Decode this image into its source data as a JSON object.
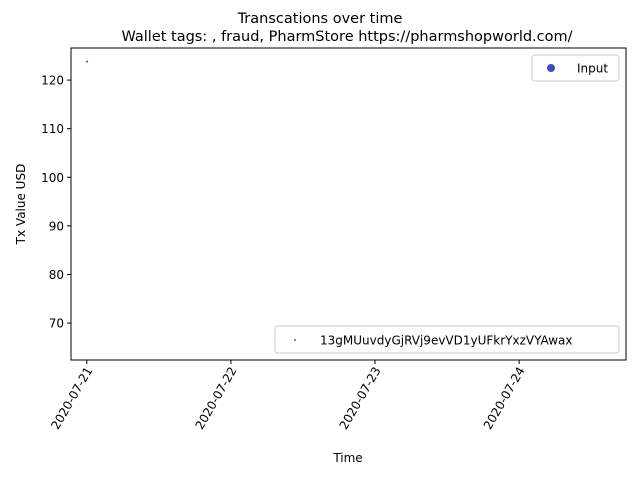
{
  "chart_data": {
    "type": "scatter",
    "suptitle": "Transcations over time",
    "title": "Wallet tags: , fraud, PharmStore https://pharmshopworld.com/",
    "xlabel": "Time",
    "ylabel": "Tx Value USD",
    "x_ticks": [
      "2020-07-21",
      "2020-07-22",
      "2020-07-23",
      "2020-07-24"
    ],
    "xlim": [
      "2020-07-20T21:22:00",
      "2020-07-24T17:48:00"
    ],
    "y_ticks": [
      70,
      80,
      90,
      100,
      110,
      120
    ],
    "ylim": [
      62.4,
      126.6
    ],
    "grid": false,
    "series": [
      {
        "name": "13gMUuvdyGjRVj9evVD1yUFkrYxzVYAwax",
        "color": "#1f77b4",
        "marker_size": "tiny",
        "points": [
          {
            "x": "2020-07-21T00:03:00",
            "y": 123.8
          }
        ]
      },
      {
        "name": "Input",
        "color": "#3b4cc0",
        "marker_size": "tiny",
        "points": [
          {
            "x": "2020-07-21T00:03:00",
            "y": 123.8
          }
        ]
      }
    ],
    "legends": [
      {
        "placement": "upper-right",
        "entries": [
          "Input"
        ],
        "marker": "large-dot",
        "color": "#3b4cc0"
      },
      {
        "placement": "lower-right",
        "entries": [
          "13gMUuvdyGjRVj9evVD1yUFkrYxzVYAwax"
        ],
        "marker": "tiny-dot",
        "color": "#1f77b4"
      }
    ]
  }
}
